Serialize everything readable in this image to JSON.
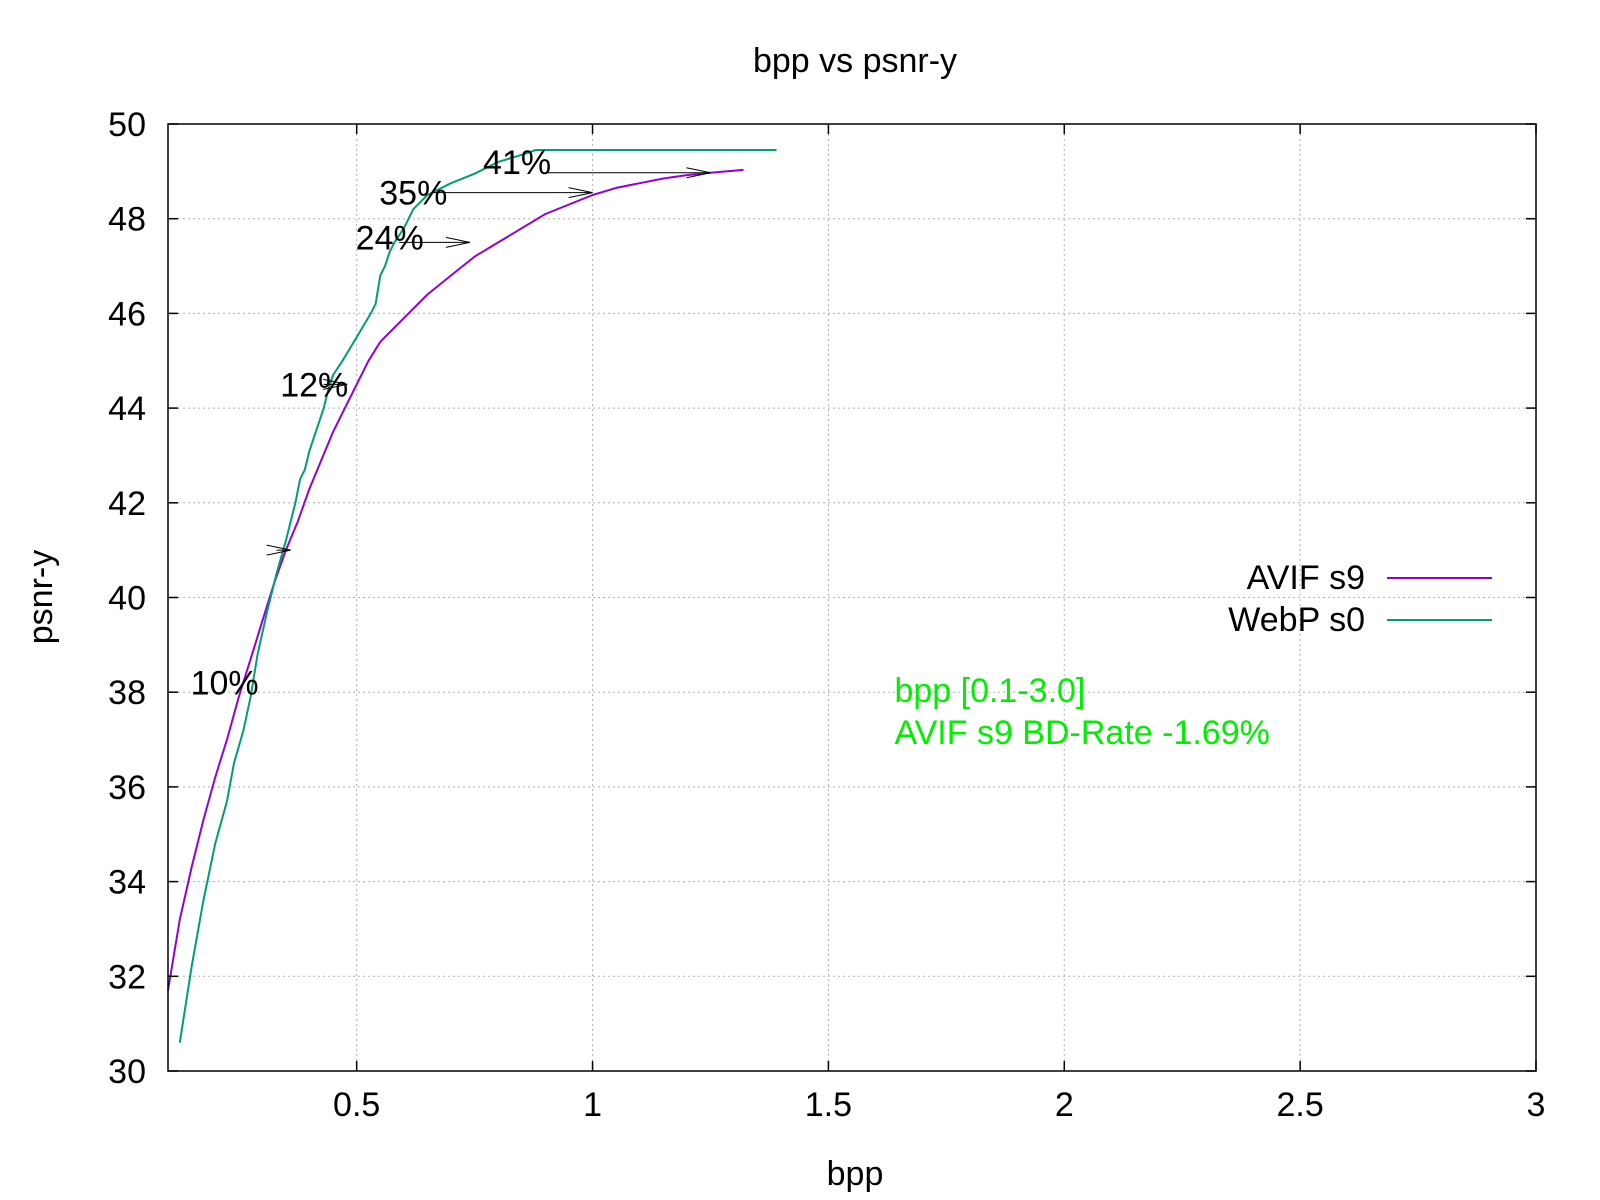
{
  "chart_data": {
    "type": "line",
    "title": "bpp vs psnr-y",
    "xlabel": "bpp",
    "ylabel": "psnr-y",
    "xlim": [
      0.1,
      3.0
    ],
    "ylim": [
      30,
      50
    ],
    "xticks": [
      0.5,
      1,
      1.5,
      2,
      2.5,
      3
    ],
    "xtick_labels": [
      "0.5",
      "1",
      "1.5",
      "2",
      "2.5",
      "3"
    ],
    "yticks": [
      30,
      32,
      34,
      36,
      38,
      40,
      42,
      44,
      46,
      48,
      50
    ],
    "ytick_labels": [
      "30",
      "32",
      "34",
      "36",
      "38",
      "40",
      "42",
      "44",
      "46",
      "48",
      "50"
    ],
    "grid": true,
    "legend_position": "right",
    "series": [
      {
        "name": "AVIF s9",
        "color": "#9400d3",
        "points": [
          [
            0.1,
            31.7
          ],
          [
            0.11,
            32.3
          ],
          [
            0.125,
            33.2
          ],
          [
            0.15,
            34.3
          ],
          [
            0.175,
            35.3
          ],
          [
            0.2,
            36.2
          ],
          [
            0.225,
            37.0
          ],
          [
            0.25,
            37.9
          ],
          [
            0.275,
            38.7
          ],
          [
            0.3,
            39.5
          ],
          [
            0.325,
            40.3
          ],
          [
            0.35,
            41.0
          ],
          [
            0.375,
            41.6
          ],
          [
            0.4,
            42.3
          ],
          [
            0.425,
            42.9
          ],
          [
            0.45,
            43.5
          ],
          [
            0.475,
            44.0
          ],
          [
            0.5,
            44.5
          ],
          [
            0.525,
            45.0
          ],
          [
            0.55,
            45.4
          ],
          [
            0.6,
            45.9
          ],
          [
            0.65,
            46.4
          ],
          [
            0.7,
            46.8
          ],
          [
            0.75,
            47.2
          ],
          [
            0.8,
            47.5
          ],
          [
            0.85,
            47.8
          ],
          [
            0.9,
            48.1
          ],
          [
            0.95,
            48.3
          ],
          [
            1.0,
            48.5
          ],
          [
            1.05,
            48.65
          ],
          [
            1.1,
            48.75
          ],
          [
            1.15,
            48.85
          ],
          [
            1.2,
            48.92
          ],
          [
            1.25,
            48.97
          ],
          [
            1.32,
            49.03
          ]
        ]
      },
      {
        "name": "WebP s0",
        "color": "#009e73",
        "points": [
          [
            0.125,
            30.6
          ],
          [
            0.15,
            32.2
          ],
          [
            0.175,
            33.6
          ],
          [
            0.2,
            34.8
          ],
          [
            0.225,
            35.7
          ],
          [
            0.24,
            36.5
          ],
          [
            0.26,
            37.2
          ],
          [
            0.275,
            37.9
          ],
          [
            0.29,
            38.8
          ],
          [
            0.31,
            39.7
          ],
          [
            0.33,
            40.5
          ],
          [
            0.35,
            41.2
          ],
          [
            0.36,
            41.6
          ],
          [
            0.37,
            42.0
          ],
          [
            0.38,
            42.5
          ],
          [
            0.39,
            42.7
          ],
          [
            0.4,
            43.1
          ],
          [
            0.41,
            43.4
          ],
          [
            0.42,
            43.7
          ],
          [
            0.43,
            44.0
          ],
          [
            0.44,
            44.4
          ],
          [
            0.45,
            44.7
          ],
          [
            0.47,
            45.0
          ],
          [
            0.5,
            45.5
          ],
          [
            0.53,
            46.0
          ],
          [
            0.54,
            46.2
          ],
          [
            0.55,
            46.8
          ],
          [
            0.56,
            47.0
          ],
          [
            0.57,
            47.3
          ],
          [
            0.58,
            47.5
          ],
          [
            0.6,
            47.8
          ],
          [
            0.62,
            48.2
          ],
          [
            0.65,
            48.5
          ],
          [
            0.7,
            48.75
          ],
          [
            0.75,
            48.95
          ],
          [
            0.8,
            49.2
          ],
          [
            0.85,
            49.35
          ],
          [
            0.88,
            49.45
          ],
          [
            0.95,
            49.45
          ],
          [
            1.1,
            49.45
          ],
          [
            1.39,
            49.45
          ]
        ]
      }
    ],
    "annotations": [
      {
        "text": "10%",
        "x": 0.22,
        "y": 38.2
      },
      {
        "text": "12%",
        "x": 0.41,
        "y": 44.5
      },
      {
        "text": "24%",
        "x": 0.57,
        "y": 47.6
      },
      {
        "text": "35%",
        "x": 0.62,
        "y": 48.55
      },
      {
        "text": "41%",
        "x": 0.84,
        "y": 49.2
      }
    ],
    "gap_arrows": [
      {
        "x1": 0.33,
        "x2": 0.36,
        "y": 41.0
      },
      {
        "x1": 0.43,
        "x2": 0.48,
        "y": 44.5
      },
      {
        "x1": 0.59,
        "x2": 0.74,
        "y": 47.5
      },
      {
        "x1": 0.66,
        "x2": 1.0,
        "y": 48.55
      },
      {
        "x1": 0.9,
        "x2": 1.25,
        "y": 48.97
      }
    ],
    "notes": {
      "color": "#00ee00",
      "lines": [
        "bpp [0.1-3.0]",
        "AVIF s9 BD-Rate -1.69%"
      ],
      "x": 1.64,
      "y": 38.0
    }
  }
}
